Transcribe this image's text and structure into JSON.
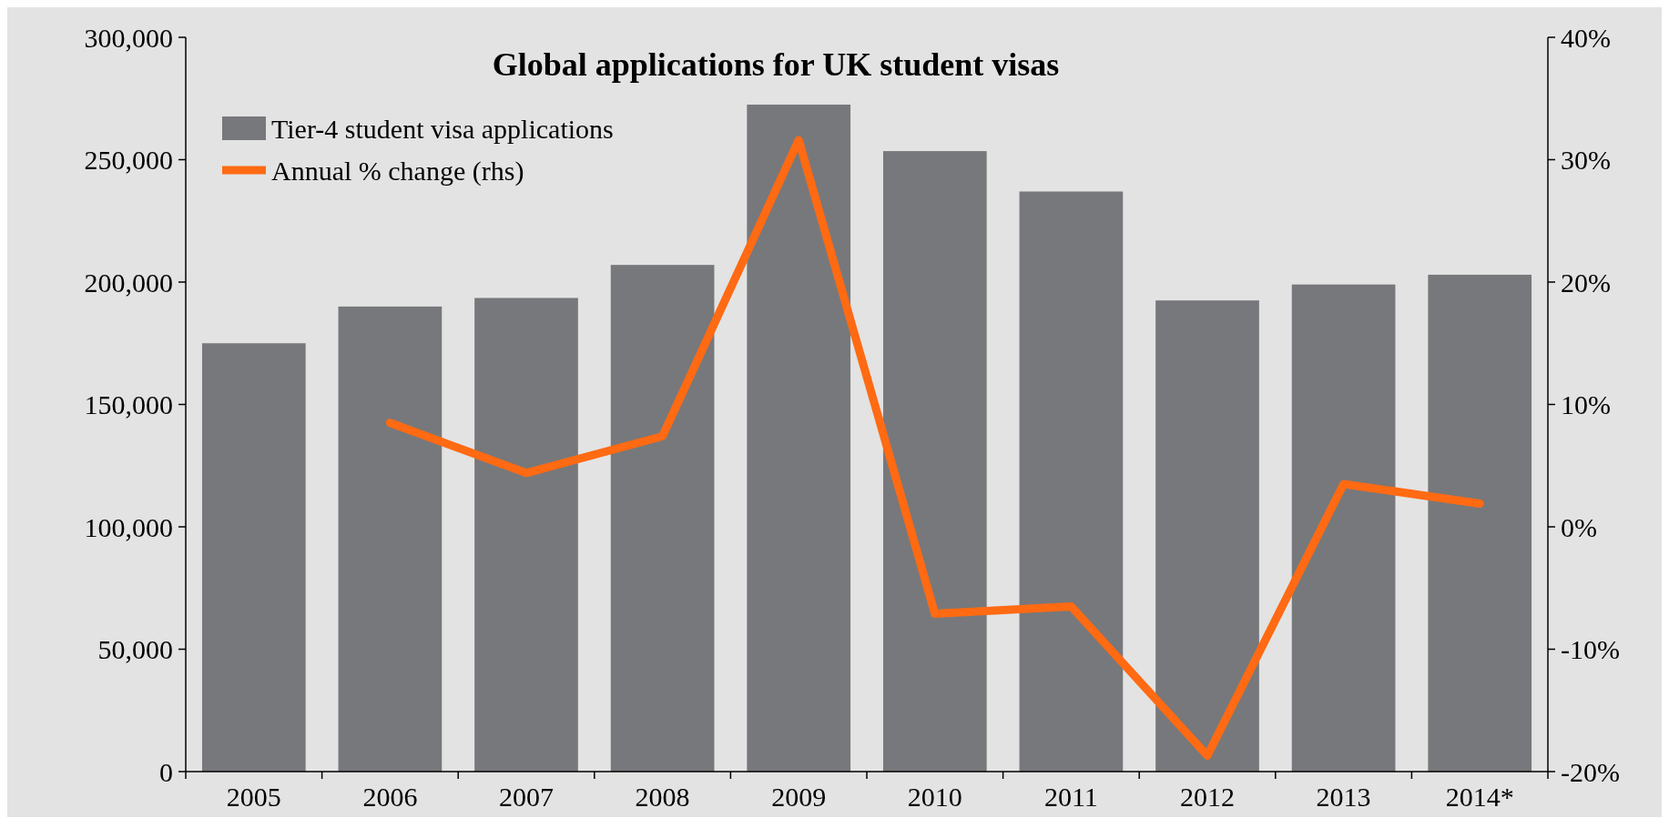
{
  "chart_data": {
    "type": "bar",
    "title": "Global applications for UK student visas",
    "categories": [
      "2005",
      "2006",
      "2007",
      "2008",
      "2009",
      "2010",
      "2011",
      "2012",
      "2013",
      "2014*"
    ],
    "series": [
      {
        "name": "Tier-4 student visa applications",
        "color": "#77787b",
        "values": [
          175000,
          190000,
          193500,
          207000,
          272500,
          253500,
          237000,
          192500,
          199000,
          203000
        ]
      },
      {
        "name": "Annual % change (rhs)",
        "type": "line",
        "axis": "y2",
        "color": "#ff6a13",
        "values": [
          null,
          8.5,
          4.4,
          7.4,
          31.6,
          -7.1,
          -6.5,
          -18.7,
          3.5,
          1.9
        ]
      }
    ],
    "ylim": [
      0,
      300000
    ],
    "yticks": [
      {
        "value": 0,
        "label": "0"
      },
      {
        "value": 50000,
        "label": "50,000"
      },
      {
        "value": 100000,
        "label": "100,000"
      },
      {
        "value": 150000,
        "label": "150,000"
      },
      {
        "value": 200000,
        "label": "200,000"
      },
      {
        "value": 250000,
        "label": "250,000"
      },
      {
        "value": 300000,
        "label": "300,000"
      }
    ],
    "y2lim": [
      -20,
      40
    ],
    "y2ticks": [
      {
        "value": -20,
        "label": "-20%"
      },
      {
        "value": -10,
        "label": "-10%"
      },
      {
        "value": 0,
        "label": "0%"
      },
      {
        "value": 10,
        "label": "10%"
      },
      {
        "value": 20,
        "label": "20%"
      },
      {
        "value": 30,
        "label": "30%"
      },
      {
        "value": 40,
        "label": "40%"
      }
    ],
    "legend": "top left",
    "grid": false
  }
}
